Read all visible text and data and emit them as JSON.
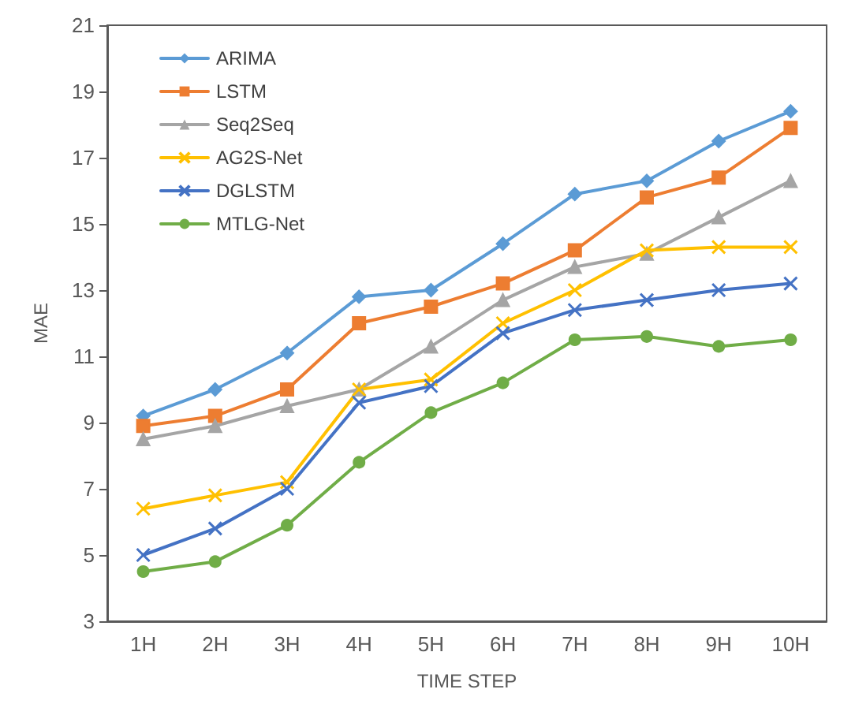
{
  "chart_data": {
    "type": "line",
    "xlabel": "TIME STEP",
    "ylabel": "MAE",
    "categories": [
      "1H",
      "2H",
      "3H",
      "4H",
      "5H",
      "6H",
      "7H",
      "8H",
      "9H",
      "10H"
    ],
    "series": [
      {
        "name": "ARIMA",
        "color": "#5b9bd5",
        "marker": "diamond",
        "values": [
          9.2,
          10.0,
          11.1,
          12.8,
          13.0,
          14.4,
          15.9,
          16.3,
          17.5,
          18.4
        ]
      },
      {
        "name": "LSTM",
        "color": "#ed7d31",
        "marker": "square",
        "values": [
          8.9,
          9.2,
          10.0,
          12.0,
          12.5,
          13.2,
          14.2,
          15.8,
          16.4,
          17.9
        ]
      },
      {
        "name": "Seq2Seq",
        "color": "#a5a5a5",
        "marker": "triangle",
        "values": [
          8.5,
          8.9,
          9.5,
          10.0,
          11.3,
          12.7,
          13.7,
          14.1,
          15.2,
          16.3
        ]
      },
      {
        "name": "AG2S-Net",
        "color": "#ffc000",
        "marker": "cross",
        "values": [
          6.4,
          6.8,
          7.2,
          10.0,
          10.3,
          12.0,
          13.0,
          14.2,
          14.3,
          14.3
        ]
      },
      {
        "name": "DGLSTM",
        "color": "#4472c4",
        "marker": "cross",
        "values": [
          5.0,
          5.8,
          7.0,
          9.6,
          10.1,
          11.7,
          12.4,
          12.7,
          13.0,
          13.2
        ]
      },
      {
        "name": "MTLG-Net",
        "color": "#70ad47",
        "marker": "circle",
        "values": [
          4.5,
          4.8,
          5.9,
          7.8,
          9.3,
          10.2,
          11.5,
          11.6,
          11.3,
          11.5
        ]
      }
    ],
    "ylim": [
      3,
      21
    ],
    "yticks": [
      3,
      5,
      7,
      9,
      11,
      13,
      15,
      17,
      19,
      21
    ],
    "grid": false,
    "legend": "top left",
    "line_style": "solid"
  }
}
